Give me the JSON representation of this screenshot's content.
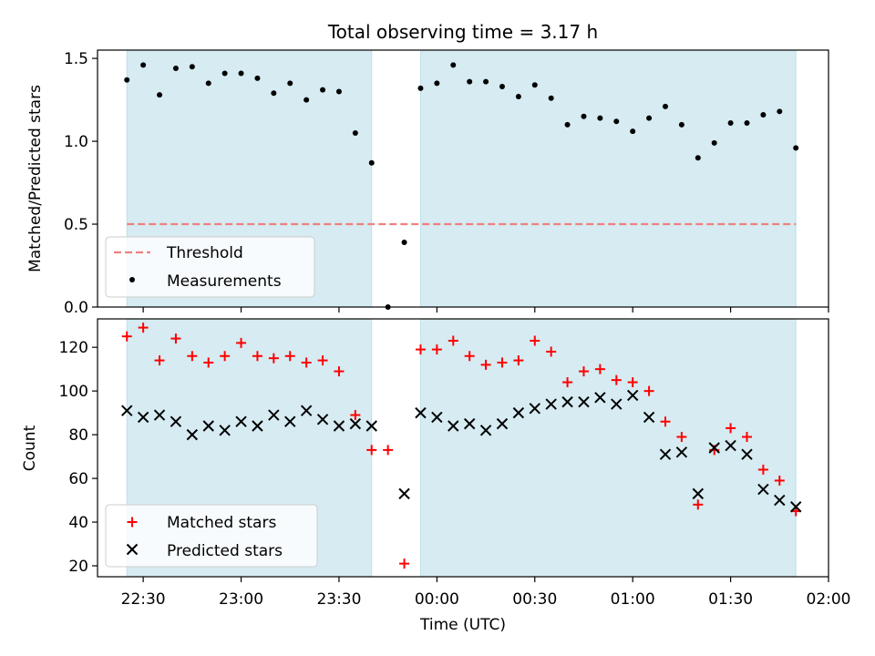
{
  "figure": {
    "title": "Total observing time = 3.17 h"
  },
  "colors": {
    "shade": "#add8e6",
    "threshold": "#f08080",
    "matched": "#ff0000",
    "predicted": "#000000",
    "measurement": "#000000"
  },
  "chart_data": [
    {
      "type": "scatter",
      "title": "Total observing time = 3.17 h",
      "xlabel": "",
      "ylabel": "Matched/Predicted stars",
      "xlim": [
        "22:16",
        "02:00"
      ],
      "ylim": [
        0,
        1.55
      ],
      "yticks": [
        "0.0",
        "0.5",
        "1.0",
        "1.5"
      ],
      "grid": false,
      "legend_position": "lower-left",
      "shaded_intervals": [
        [
          "22:25",
          "23:40"
        ],
        [
          "23:55",
          "01:50"
        ]
      ],
      "threshold": {
        "name": "Threshold",
        "y": 0.5,
        "x_range": [
          "22:25",
          "01:50"
        ]
      },
      "series": [
        {
          "name": "Measurements",
          "x": [
            "22:25",
            "22:30",
            "22:35",
            "22:40",
            "22:45",
            "22:50",
            "22:55",
            "23:00",
            "23:05",
            "23:10",
            "23:15",
            "23:20",
            "23:25",
            "23:30",
            "23:35",
            "23:40",
            "23:45",
            "23:50",
            "23:55",
            "00:00",
            "00:05",
            "00:10",
            "00:15",
            "00:20",
            "00:25",
            "00:30",
            "00:35",
            "00:40",
            "00:45",
            "00:50",
            "00:55",
            "01:00",
            "01:05",
            "01:10",
            "01:15",
            "01:20",
            "01:25",
            "01:30",
            "01:35",
            "01:40",
            "01:45",
            "01:50"
          ],
          "y": [
            1.37,
            1.46,
            1.28,
            1.44,
            1.45,
            1.35,
            1.41,
            1.41,
            1.38,
            1.29,
            1.35,
            1.25,
            1.31,
            1.3,
            1.05,
            0.87,
            0.0,
            0.39,
            1.32,
            1.35,
            1.46,
            1.36,
            1.36,
            1.33,
            1.27,
            1.34,
            1.26,
            1.1,
            1.15,
            1.14,
            1.12,
            1.06,
            1.14,
            1.21,
            1.1,
            0.9,
            0.99,
            1.11,
            1.11,
            1.16,
            1.18,
            0.96
          ]
        }
      ]
    },
    {
      "type": "scatter",
      "xlabel": "Time (UTC)",
      "ylabel": "Count",
      "xlim": [
        "22:16",
        "02:00"
      ],
      "xticks": [
        "22:30",
        "23:00",
        "23:30",
        "00:00",
        "00:30",
        "01:00",
        "01:30",
        "02:00"
      ],
      "ylim": [
        15,
        133
      ],
      "yticks": [
        "20",
        "40",
        "60",
        "80",
        "100",
        "120"
      ],
      "grid": false,
      "legend_position": "lower-left",
      "shaded_intervals": [
        [
          "22:25",
          "23:40"
        ],
        [
          "23:55",
          "01:50"
        ]
      ],
      "series": [
        {
          "name": "Matched stars",
          "marker": "plus",
          "x": [
            "22:25",
            "22:30",
            "22:35",
            "22:40",
            "22:45",
            "22:50",
            "22:55",
            "23:00",
            "23:05",
            "23:10",
            "23:15",
            "23:20",
            "23:25",
            "23:30",
            "23:35",
            "23:40",
            "23:45",
            "23:50",
            "23:55",
            "00:00",
            "00:05",
            "00:10",
            "00:15",
            "00:20",
            "00:25",
            "00:30",
            "00:35",
            "00:40",
            "00:45",
            "00:50",
            "00:55",
            "01:00",
            "01:05",
            "01:10",
            "01:15",
            "01:20",
            "01:25",
            "01:30",
            "01:35",
            "01:40",
            "01:45",
            "01:50"
          ],
          "y": [
            125,
            129,
            114,
            124,
            116,
            113,
            116,
            122,
            116,
            115,
            116,
            113,
            114,
            109,
            89,
            73,
            73,
            21,
            119,
            119,
            123,
            116,
            112,
            113,
            114,
            123,
            118,
            104,
            109,
            110,
            105,
            104,
            100,
            86,
            79,
            48,
            73,
            83,
            79,
            64,
            59,
            45
          ]
        },
        {
          "name": "Predicted stars",
          "marker": "x",
          "x": [
            "22:25",
            "22:30",
            "22:35",
            "22:40",
            "22:45",
            "22:50",
            "22:55",
            "23:00",
            "23:05",
            "23:10",
            "23:15",
            "23:20",
            "23:25",
            "23:30",
            "23:35",
            "23:40",
            "23:50",
            "23:55",
            "00:00",
            "00:05",
            "00:10",
            "00:15",
            "00:20",
            "00:25",
            "00:30",
            "00:35",
            "00:40",
            "00:45",
            "00:50",
            "00:55",
            "01:00",
            "01:05",
            "01:10",
            "01:15",
            "01:20",
            "01:25",
            "01:30",
            "01:35",
            "01:40",
            "01:45",
            "01:50"
          ],
          "y": [
            91,
            88,
            89,
            86,
            80,
            84,
            82,
            86,
            84,
            89,
            86,
            91,
            87,
            84,
            85,
            84,
            53,
            90,
            88,
            84,
            85,
            82,
            85,
            90,
            92,
            94,
            95,
            95,
            97,
            94,
            98,
            88,
            71,
            72,
            53,
            74,
            75,
            71,
            55,
            50,
            47
          ]
        }
      ]
    }
  ]
}
